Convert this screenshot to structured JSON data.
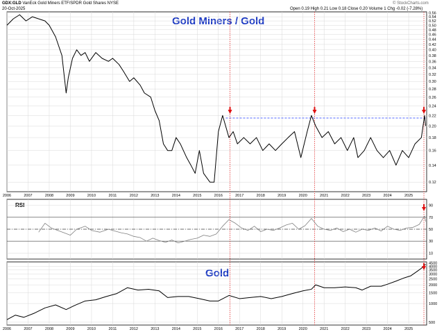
{
  "header": {
    "symbol": "GDX:GLD",
    "description": "VanEck Gold Miners ETF/SPDR Gold Shares NYSE",
    "date": "20-Oct-2025",
    "open_label": "Open",
    "open": "0.19",
    "high_label": "High",
    "high": "0.21",
    "low_label": "Low",
    "low": "0.18",
    "close_label": "Close",
    "close": "0.20",
    "volume_label": "Volume",
    "volume": "1",
    "chg_label": "Chg",
    "chg": "-0.02 (-7.28%)",
    "watermark": "© StockCharts.com"
  },
  "colors": {
    "title": "#1f3cc4",
    "line": "#000000",
    "rsi_line": "#808080",
    "rsi_fill": "#808080",
    "resistance": "#8090ff",
    "marker": "#e01010",
    "vline": "#e03030",
    "grid": "#d8d8d8"
  },
  "chart_data": [
    {
      "type": "line",
      "title": "Gold Miners / Gold",
      "x_ticks": [
        "2006",
        "2007",
        "2008",
        "2009",
        "2010",
        "2011",
        "2012",
        "2013",
        "2014",
        "2015",
        "2016",
        "2017",
        "2018",
        "2019",
        "2020",
        "2021",
        "2022",
        "2023",
        "2024",
        "2025"
      ],
      "y_ticks": [
        "0.12",
        "0.14",
        "0.16",
        "0.18",
        "0.20",
        "0.22",
        "0.24",
        "0.26",
        "0.28",
        "0.30",
        "0.32",
        "0.34",
        "0.36",
        "0.38",
        "0.40",
        "0.42",
        "0.44",
        "0.46",
        "0.48",
        "0.50",
        "0.52",
        "0.54",
        "0.56"
      ],
      "ylim": [
        0.11,
        0.565
      ],
      "x": [
        2006.0,
        2006.3,
        2006.6,
        2006.9,
        2007.2,
        2007.5,
        2007.8,
        2008.0,
        2008.3,
        2008.6,
        2008.8,
        2008.9,
        2009.1,
        2009.3,
        2009.5,
        2009.7,
        2009.9,
        2010.2,
        2010.5,
        2010.8,
        2011.0,
        2011.3,
        2011.5,
        2011.8,
        2012.0,
        2012.3,
        2012.5,
        2012.8,
        2013.0,
        2013.2,
        2013.4,
        2013.6,
        2013.8,
        2014.0,
        2014.2,
        2014.5,
        2014.7,
        2014.9,
        2015.1,
        2015.3,
        2015.6,
        2015.8,
        2016.0,
        2016.2,
        2016.5,
        2016.7,
        2016.9,
        2017.2,
        2017.5,
        2017.8,
        2018.1,
        2018.4,
        2018.7,
        2019.0,
        2019.3,
        2019.6,
        2019.9,
        2020.2,
        2020.4,
        2020.6,
        2020.9,
        2021.2,
        2021.5,
        2021.8,
        2022.1,
        2022.4,
        2022.6,
        2022.9,
        2023.2,
        2023.5,
        2023.8,
        2024.1,
        2024.4,
        2024.7,
        2025.0,
        2025.3,
        2025.6,
        2025.75,
        2025.8
      ],
      "values": [
        0.5,
        0.53,
        0.55,
        0.52,
        0.54,
        0.53,
        0.52,
        0.5,
        0.45,
        0.38,
        0.27,
        0.31,
        0.37,
        0.4,
        0.38,
        0.39,
        0.36,
        0.39,
        0.37,
        0.36,
        0.37,
        0.35,
        0.33,
        0.3,
        0.31,
        0.29,
        0.27,
        0.26,
        0.23,
        0.21,
        0.17,
        0.16,
        0.16,
        0.18,
        0.17,
        0.15,
        0.14,
        0.13,
        0.16,
        0.13,
        0.12,
        0.12,
        0.19,
        0.22,
        0.18,
        0.19,
        0.17,
        0.18,
        0.17,
        0.18,
        0.16,
        0.17,
        0.16,
        0.17,
        0.18,
        0.19,
        0.15,
        0.19,
        0.22,
        0.2,
        0.18,
        0.19,
        0.17,
        0.18,
        0.16,
        0.18,
        0.15,
        0.16,
        0.18,
        0.16,
        0.15,
        0.16,
        0.14,
        0.16,
        0.15,
        0.17,
        0.18,
        0.22,
        0.2
      ],
      "resistance": 0.215
    },
    {
      "type": "line",
      "title": "RSI",
      "y_ticks": [
        "10",
        "30",
        "50",
        "70",
        "90"
      ],
      "ylim": [
        0,
        100
      ],
      "levels": [
        30,
        50,
        70
      ],
      "x": [
        2007.5,
        2007.8,
        2008.1,
        2008.4,
        2008.7,
        2009.0,
        2009.3,
        2009.7,
        2010.0,
        2010.4,
        2010.8,
        2011.1,
        2011.4,
        2011.7,
        2012.0,
        2012.3,
        2012.6,
        2012.9,
        2013.2,
        2013.5,
        2013.8,
        2014.1,
        2014.4,
        2014.7,
        2015.0,
        2015.3,
        2015.6,
        2015.9,
        2016.2,
        2016.5,
        2016.8,
        2017.1,
        2017.4,
        2017.7,
        2018.0,
        2018.3,
        2018.6,
        2018.9,
        2019.2,
        2019.5,
        2019.8,
        2020.1,
        2020.4,
        2020.7,
        2021.0,
        2021.3,
        2021.6,
        2021.9,
        2022.2,
        2022.5,
        2022.8,
        2023.1,
        2023.4,
        2023.7,
        2024.0,
        2024.3,
        2024.6,
        2024.9,
        2025.2,
        2025.5,
        2025.75,
        2025.8
      ],
      "values": [
        45,
        60,
        52,
        48,
        44,
        40,
        50,
        55,
        48,
        45,
        50,
        47,
        44,
        42,
        38,
        36,
        30,
        35,
        31,
        28,
        32,
        27,
        30,
        33,
        35,
        40,
        38,
        42,
        55,
        66,
        60,
        52,
        48,
        55,
        46,
        50,
        48,
        52,
        57,
        60,
        50,
        56,
        68,
        55,
        50,
        48,
        52,
        46,
        50,
        45,
        50,
        48,
        52,
        47,
        55,
        50,
        48,
        52,
        53,
        58,
        72,
        63
      ]
    },
    {
      "type": "line",
      "title": "Gold",
      "y_ticks": [
        "500",
        "1000",
        "1500",
        "2000",
        "2500",
        "3000",
        "3500",
        "4000",
        "4500"
      ],
      "ylim": [
        450,
        4700
      ],
      "x": [
        2006.0,
        2006.4,
        2006.8,
        2007.3,
        2007.8,
        2008.3,
        2008.8,
        2009.2,
        2009.7,
        2010.2,
        2010.7,
        2011.2,
        2011.7,
        2012.2,
        2012.7,
        2013.2,
        2013.6,
        2014.1,
        2014.6,
        2015.1,
        2015.6,
        2016.0,
        2016.5,
        2017.0,
        2017.5,
        2018.0,
        2018.5,
        2019.0,
        2019.5,
        2020.0,
        2020.4,
        2020.6,
        2021.0,
        2021.5,
        2022.0,
        2022.5,
        2022.8,
        2023.2,
        2023.7,
        2024.0,
        2024.4,
        2024.8,
        2025.1,
        2025.4,
        2025.6,
        2025.8
      ],
      "values": [
        550,
        650,
        600,
        700,
        850,
        950,
        800,
        930,
        1100,
        1150,
        1300,
        1450,
        1800,
        1650,
        1700,
        1600,
        1250,
        1300,
        1300,
        1200,
        1100,
        1100,
        1350,
        1200,
        1250,
        1300,
        1200,
        1300,
        1450,
        1600,
        1700,
        2000,
        1800,
        1800,
        1850,
        1800,
        1650,
        1900,
        1900,
        2050,
        2300,
        2600,
        2800,
        3300,
        3700,
        4300
      ]
    }
  ]
}
